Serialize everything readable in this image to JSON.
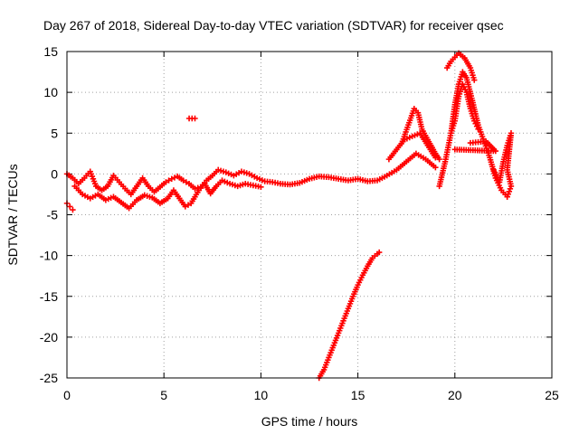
{
  "chart_data": {
    "type": "scatter",
    "title": "Day 267 of 2018, Sidereal Day-to-day VTEC variation (SDTVAR) for receiver qsec",
    "xlabel": "GPS time / hours",
    "ylabel": "SDTVAR / TECUs",
    "xlim": [
      0,
      25
    ],
    "ylim": [
      -25,
      15
    ],
    "xticks": [
      0,
      5,
      10,
      15,
      20,
      25
    ],
    "yticks": [
      -25,
      -20,
      -15,
      -10,
      -5,
      0,
      5,
      10,
      15
    ],
    "xtick_labels": [
      "0",
      "5",
      "10",
      "15",
      "20",
      "25"
    ],
    "ytick_labels": [
      "-25",
      "-20",
      "-15",
      "-10",
      "-5",
      "0",
      "5",
      "10",
      "15"
    ],
    "grid": true,
    "marker": "+",
    "color": "#ff0000",
    "series": [
      {
        "name": "main-track",
        "points": [
          [
            0,
            0
          ],
          [
            0.3,
            -0.5
          ],
          [
            0.6,
            -1.2
          ],
          [
            0.9,
            -0.5
          ],
          [
            1.2,
            0.3
          ],
          [
            1.5,
            -1.5
          ],
          [
            1.8,
            -2.0
          ],
          [
            2.1,
            -1.5
          ],
          [
            2.4,
            -0.2
          ],
          [
            2.7,
            -1.0
          ],
          [
            3.0,
            -1.8
          ],
          [
            3.3,
            -2.5
          ],
          [
            3.6,
            -1.5
          ],
          [
            3.9,
            -0.5
          ],
          [
            4.2,
            -1.5
          ],
          [
            4.5,
            -2.2
          ],
          [
            4.8,
            -1.6
          ],
          [
            5.1,
            -1.0
          ],
          [
            5.4,
            -0.6
          ],
          [
            5.7,
            -0.3
          ],
          [
            6.0,
            -0.8
          ],
          [
            6.3,
            -1.2
          ],
          [
            6.6,
            -1.8
          ],
          [
            6.9,
            -1.6
          ],
          [
            7.2,
            -0.8
          ],
          [
            7.5,
            -0.2
          ],
          [
            7.8,
            0.5
          ],
          [
            8.2,
            0.2
          ],
          [
            8.6,
            -0.2
          ],
          [
            9.0,
            0.3
          ],
          [
            9.4,
            0.0
          ],
          [
            9.8,
            -0.5
          ],
          [
            10.2,
            -0.9
          ],
          [
            10.6,
            -1.0
          ],
          [
            11.0,
            -1.2
          ],
          [
            11.5,
            -1.3
          ],
          [
            12.0,
            -1.1
          ],
          [
            12.5,
            -0.6
          ],
          [
            13.0,
            -0.3
          ],
          [
            13.5,
            -0.4
          ],
          [
            14.0,
            -0.6
          ],
          [
            14.5,
            -0.8
          ],
          [
            15.0,
            -0.6
          ],
          [
            15.5,
            -0.9
          ],
          [
            16.0,
            -0.8
          ],
          [
            16.5,
            -0.2
          ],
          [
            17.0,
            0.5
          ],
          [
            17.5,
            1.5
          ],
          [
            18.0,
            2.5
          ],
          [
            18.5,
            1.8
          ],
          [
            19.0,
            0.8
          ]
        ]
      },
      {
        "name": "lower-tracks",
        "points": [
          [
            0.4,
            -1.5
          ],
          [
            0.8,
            -2.5
          ],
          [
            1.2,
            -3.0
          ],
          [
            1.6,
            -2.5
          ],
          [
            2.0,
            -3.2
          ],
          [
            2.4,
            -2.8
          ],
          [
            2.8,
            -3.5
          ],
          [
            3.2,
            -4.2
          ],
          [
            3.6,
            -3.2
          ],
          [
            4.0,
            -2.6
          ],
          [
            4.4,
            -2.9
          ],
          [
            4.8,
            -3.6
          ],
          [
            5.2,
            -3.0
          ],
          [
            5.5,
            -2.0
          ],
          [
            5.8,
            -3.0
          ],
          [
            6.1,
            -4.0
          ],
          [
            6.4,
            -3.6
          ],
          [
            6.8,
            -2.0
          ],
          [
            7.1,
            -1.2
          ],
          [
            7.4,
            -2.4
          ],
          [
            7.7,
            -1.5
          ],
          [
            8.0,
            -0.8
          ],
          [
            8.4,
            -1.2
          ],
          [
            8.8,
            -1.5
          ],
          [
            9.2,
            -1.2
          ],
          [
            9.6,
            -1.4
          ],
          [
            10.0,
            -1.6
          ]
        ]
      },
      {
        "name": "early-segment",
        "points": [
          [
            0.0,
            -3.6
          ],
          [
            0.15,
            -4.0
          ],
          [
            0.3,
            -4.4
          ]
        ]
      },
      {
        "name": "upper-branch",
        "points": [
          [
            16.6,
            1.8
          ],
          [
            17.0,
            3.0
          ],
          [
            17.4,
            4.2
          ],
          [
            17.8,
            4.6
          ],
          [
            18.2,
            5.0
          ],
          [
            18.6,
            3.5
          ],
          [
            19.0,
            2.0
          ]
        ]
      },
      {
        "name": "rising-arc",
        "points": [
          [
            17.3,
            4.0
          ],
          [
            17.6,
            6.0
          ],
          [
            17.9,
            8.0
          ],
          [
            18.1,
            7.5
          ],
          [
            18.3,
            5.5
          ],
          [
            18.6,
            4.2
          ],
          [
            19.0,
            2.5
          ],
          [
            19.2,
            1.8
          ]
        ]
      },
      {
        "name": "peak-arc",
        "points": [
          [
            19.2,
            -1.5
          ],
          [
            19.5,
            1.5
          ],
          [
            19.8,
            5.0
          ],
          [
            20.0,
            8.5
          ],
          [
            20.2,
            11.0
          ],
          [
            20.4,
            12.5
          ],
          [
            20.6,
            11.8
          ],
          [
            20.9,
            9.0
          ],
          [
            21.2,
            6.0
          ],
          [
            21.5,
            4.0
          ],
          [
            21.8,
            2.0
          ],
          [
            22.1,
            -0.5
          ],
          [
            22.4,
            -2.0
          ],
          [
            22.7,
            -2.8
          ]
        ]
      },
      {
        "name": "top-spike",
        "points": [
          [
            19.6,
            13.0
          ],
          [
            19.8,
            13.8
          ],
          [
            20.0,
            14.3
          ],
          [
            20.2,
            14.8
          ],
          [
            20.5,
            14.2
          ],
          [
            20.8,
            13.0
          ],
          [
            21.0,
            11.5
          ]
        ]
      },
      {
        "name": "mid-spike",
        "points": [
          [
            19.8,
            5.0
          ],
          [
            20.0,
            6.5
          ],
          [
            20.2,
            9.5
          ],
          [
            20.4,
            11.0
          ],
          [
            20.6,
            10.0
          ],
          [
            20.8,
            8.0
          ],
          [
            21.0,
            6.5
          ],
          [
            21.2,
            5.5
          ]
        ]
      },
      {
        "name": "late-segment",
        "points": [
          [
            22.0,
            0.5
          ],
          [
            22.3,
            -1.0
          ],
          [
            22.5,
            1.5
          ],
          [
            22.7,
            3.5
          ],
          [
            22.9,
            5.0
          ],
          [
            22.7,
            0.5
          ],
          [
            22.9,
            -1.5
          ],
          [
            22.7,
            -2.8
          ]
        ]
      },
      {
        "name": "late-dots",
        "points": [
          [
            20.8,
            3.8
          ],
          [
            21.6,
            4.0
          ],
          [
            22.1,
            2.8
          ],
          [
            20.0,
            3.0
          ]
        ]
      },
      {
        "name": "isolated-point",
        "points": [
          [
            6.3,
            6.8
          ],
          [
            6.45,
            6.8
          ],
          [
            6.6,
            6.8
          ]
        ]
      },
      {
        "name": "descent",
        "points": [
          [
            13.0,
            -25.0
          ],
          [
            13.25,
            -24.0
          ],
          [
            13.5,
            -22.5
          ],
          [
            13.75,
            -21.0
          ],
          [
            14.0,
            -19.5
          ],
          [
            14.25,
            -18.0
          ],
          [
            14.5,
            -16.5
          ],
          [
            14.75,
            -15.0
          ],
          [
            15.0,
            -13.6
          ],
          [
            15.25,
            -12.4
          ],
          [
            15.5,
            -11.3
          ],
          [
            15.75,
            -10.3
          ],
          [
            16.0,
            -9.8
          ],
          [
            16.1,
            -9.6
          ]
        ]
      }
    ]
  }
}
